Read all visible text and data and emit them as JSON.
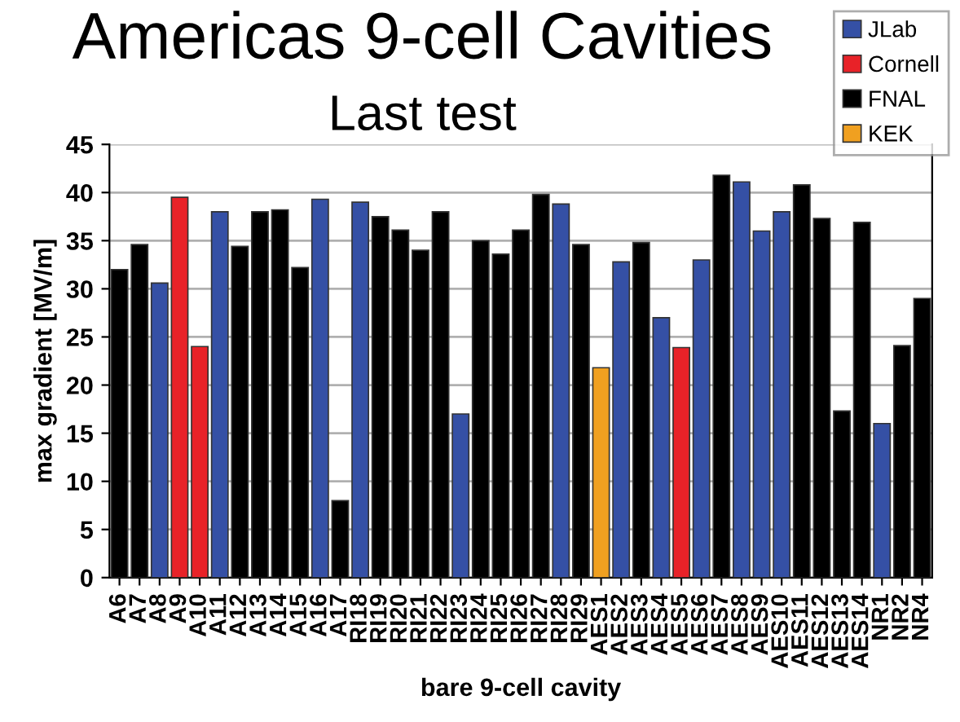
{
  "chart_data": {
    "type": "bar",
    "title": "Americas 9-cell Cavities",
    "subtitle": "Last test",
    "xlabel": "bare 9-cell cavity",
    "ylabel": "max gradient [MV/m]",
    "categories": [
      "A6",
      "A7",
      "A8",
      "A9",
      "A10",
      "A11",
      "A12",
      "A13",
      "A14",
      "A15",
      "A16",
      "A17",
      "RI18",
      "RI19",
      "RI20",
      "RI21",
      "RI22",
      "RI23",
      "RI24",
      "RI25",
      "RI26",
      "RI27",
      "RI28",
      "RI29",
      "AES1",
      "AES2",
      "AES3",
      "AES4",
      "AES5",
      "AES6",
      "AES7",
      "AES8",
      "AES9",
      "AES10",
      "AES11",
      "AES12",
      "AES13",
      "AES14",
      "NR1",
      "NR2",
      "NR4"
    ],
    "series": [
      {
        "name": "JLab",
        "color": "#3550a5",
        "values": [
          null,
          null,
          30.6,
          null,
          null,
          38,
          null,
          null,
          null,
          null,
          39.3,
          null,
          39,
          null,
          null,
          null,
          null,
          17,
          null,
          null,
          null,
          null,
          38.8,
          null,
          null,
          32.8,
          null,
          27,
          null,
          33,
          null,
          41.1,
          36,
          38,
          null,
          null,
          null,
          null,
          16,
          null,
          null
        ]
      },
      {
        "name": "Cornell",
        "color": "#e82228",
        "values": [
          null,
          null,
          null,
          39.5,
          24,
          null,
          null,
          null,
          null,
          null,
          null,
          null,
          null,
          null,
          null,
          null,
          null,
          null,
          null,
          null,
          null,
          null,
          null,
          null,
          null,
          null,
          null,
          null,
          23.9,
          null,
          null,
          null,
          null,
          null,
          null,
          null,
          null,
          null,
          null,
          null,
          null
        ]
      },
      {
        "name": "FNAL",
        "color": "#000000",
        "values": [
          32,
          34.6,
          null,
          null,
          null,
          null,
          34.4,
          38,
          38.2,
          32.2,
          null,
          8,
          null,
          37.5,
          36.1,
          34,
          38,
          null,
          35,
          33.6,
          36.1,
          39.8,
          null,
          34.6,
          null,
          null,
          34.8,
          null,
          null,
          null,
          41.8,
          null,
          null,
          null,
          40.8,
          37.3,
          17.3,
          36.9,
          null,
          24.1,
          29
        ]
      },
      {
        "name": "KEK",
        "color": "#f0a020",
        "values": [
          null,
          null,
          null,
          null,
          null,
          null,
          null,
          null,
          null,
          null,
          null,
          null,
          null,
          null,
          null,
          null,
          null,
          null,
          null,
          null,
          null,
          null,
          null,
          null,
          21.8,
          null,
          null,
          null,
          null,
          null,
          null,
          null,
          null,
          null,
          null,
          null,
          null,
          null,
          null,
          null,
          null
        ]
      }
    ],
    "ylim": [
      0,
      45
    ],
    "yticks": [
      0,
      5,
      10,
      15,
      20,
      25,
      30,
      35,
      40,
      45
    ],
    "grid": "y",
    "legend": "top right"
  }
}
